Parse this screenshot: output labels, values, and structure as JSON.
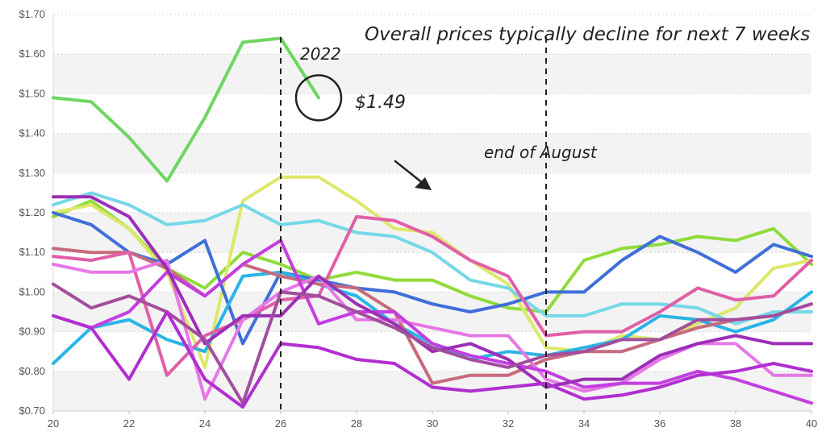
{
  "chart_data": {
    "type": "line",
    "x": [
      20,
      21,
      22,
      23,
      24,
      25,
      26,
      27,
      28,
      29,
      30,
      31,
      32,
      33,
      34,
      35,
      36,
      37,
      38,
      39,
      40
    ],
    "xlim": [
      20,
      40
    ],
    "ylim": [
      0.7,
      1.7
    ],
    "x_ticks": [
      20,
      22,
      24,
      26,
      28,
      30,
      32,
      34,
      36,
      38,
      40
    ],
    "y_ticks": [
      "$0.70",
      "$0.80",
      "$0.90",
      "$1.00",
      "$1.10",
      "$1.20",
      "$1.30",
      "$1.40",
      "$1.50",
      "$1.60",
      "$1.70"
    ],
    "y_tick_values": [
      0.7,
      0.8,
      0.9,
      1.0,
      1.1,
      1.2,
      1.3,
      1.4,
      1.5,
      1.6,
      1.7
    ],
    "grid": "horizontal-dotted-banded",
    "series": [
      {
        "color": "#6ed661",
        "values": [
          1.49,
          1.48,
          1.39,
          1.28,
          1.44,
          1.63,
          1.64,
          1.49,
          null,
          null,
          null,
          null,
          null,
          null,
          null,
          null,
          null,
          null,
          null,
          null,
          null
        ]
      },
      {
        "color": "#8fdc3a",
        "values": [
          1.19,
          1.23,
          1.16,
          1.06,
          1.01,
          1.1,
          1.07,
          1.03,
          1.05,
          1.03,
          1.03,
          0.99,
          0.96,
          0.95,
          1.08,
          1.11,
          1.12,
          1.14,
          1.13,
          1.16,
          1.07
        ]
      },
      {
        "color": "#dde86a",
        "values": [
          1.2,
          1.22,
          1.16,
          1.05,
          0.81,
          1.23,
          1.29,
          1.29,
          1.23,
          1.16,
          1.15,
          1.08,
          1.02,
          0.86,
          0.85,
          0.89,
          0.88,
          0.92,
          0.96,
          1.06,
          1.08
        ]
      },
      {
        "color": "#76d8e8",
        "values": [
          1.22,
          1.25,
          1.22,
          1.17,
          1.18,
          1.22,
          1.17,
          1.18,
          1.15,
          1.14,
          1.1,
          1.03,
          1.01,
          0.94,
          0.94,
          0.97,
          0.97,
          0.96,
          0.92,
          0.95,
          0.95
        ]
      },
      {
        "color": "#3f6fd8",
        "values": [
          1.2,
          1.17,
          1.1,
          1.07,
          1.13,
          0.87,
          1.05,
          1.03,
          1.01,
          1.0,
          0.97,
          0.95,
          0.97,
          1.0,
          1.0,
          1.08,
          1.14,
          1.1,
          1.05,
          1.12,
          1.09
        ]
      },
      {
        "color": "#2ab4e6",
        "values": [
          0.82,
          0.91,
          0.93,
          0.88,
          0.85,
          1.04,
          1.05,
          1.02,
          0.99,
          0.92,
          0.87,
          0.83,
          0.85,
          0.84,
          0.86,
          0.88,
          0.94,
          0.93,
          0.9,
          0.93,
          1.0
        ]
      },
      {
        "color": "#c86a7d",
        "values": [
          1.11,
          1.1,
          1.1,
          1.06,
          0.99,
          1.07,
          1.04,
          1.02,
          1.01,
          0.95,
          0.77,
          0.79,
          0.79,
          0.83,
          0.85,
          0.85,
          0.88,
          0.91,
          0.93,
          0.94,
          0.97
        ]
      },
      {
        "color": "#e15fa8",
        "values": [
          1.09,
          1.08,
          1.1,
          0.79,
          0.89,
          0.93,
          0.98,
          0.99,
          1.19,
          1.18,
          1.14,
          1.08,
          1.04,
          0.89,
          0.9,
          0.9,
          0.95,
          1.01,
          0.98,
          0.99,
          1.08
        ]
      },
      {
        "color": "#e678e6",
        "values": [
          1.07,
          1.05,
          1.05,
          1.08,
          0.73,
          0.93,
          1.0,
          1.04,
          0.93,
          0.93,
          0.91,
          0.89,
          0.89,
          0.78,
          0.75,
          0.77,
          0.83,
          0.87,
          0.87,
          0.79,
          0.79
        ]
      },
      {
        "color": "#c43ee0",
        "values": [
          0.94,
          0.91,
          0.95,
          1.05,
          0.99,
          1.07,
          1.13,
          0.92,
          0.95,
          0.95,
          0.87,
          0.84,
          0.82,
          0.8,
          0.76,
          0.77,
          0.77,
          0.8,
          0.78,
          0.75,
          0.72
        ]
      },
      {
        "color": "#9c2fb5",
        "values": [
          1.24,
          1.24,
          1.19,
          1.06,
          0.87,
          0.94,
          0.94,
          1.04,
          0.97,
          0.92,
          0.85,
          0.87,
          0.83,
          0.76,
          0.78,
          0.78,
          0.84,
          0.87,
          0.89,
          0.87,
          0.87
        ]
      },
      {
        "color": "#a24e9e",
        "values": [
          1.02,
          0.96,
          0.99,
          0.95,
          0.88,
          0.72,
          1.0,
          0.99,
          0.95,
          0.91,
          0.86,
          0.83,
          0.81,
          0.84,
          0.85,
          0.88,
          0.88,
          0.93,
          0.93,
          0.94,
          0.97
        ]
      },
      {
        "color": "#b12fd0",
        "values": [
          0.94,
          0.91,
          0.78,
          0.95,
          0.78,
          0.71,
          0.87,
          0.86,
          0.83,
          0.82,
          0.76,
          0.75,
          0.76,
          0.77,
          0.73,
          0.74,
          0.76,
          0.79,
          0.8,
          0.82,
          0.8
        ]
      }
    ],
    "vlines": [
      26,
      33
    ],
    "annotations": {
      "headline": "Overall prices typically decline for next 7 weeks",
      "year_label": "2022",
      "price_label": "$1.49",
      "august_label": "end of August"
    },
    "circle_point": {
      "x": 27,
      "y": 1.49
    }
  }
}
